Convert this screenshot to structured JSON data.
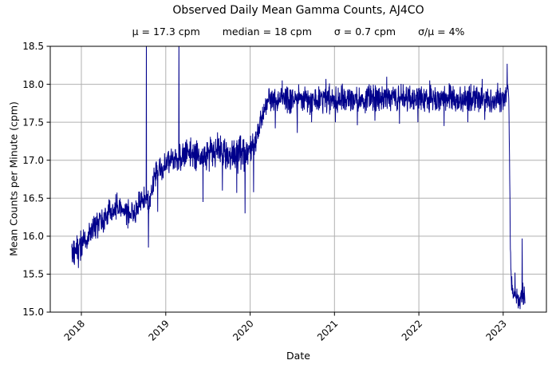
{
  "chart_data": {
    "type": "line",
    "title": "Observed Daily Mean Gamma Counts, AJ4CO",
    "stats": {
      "mu": "μ = 17.3 cpm",
      "median": "median = 18 cpm",
      "sigma": "σ = 0.7 cpm",
      "ratio": "σ/μ = 4%"
    },
    "xlabel": "Date",
    "ylabel": "Mean Counts per Minute (cpm)",
    "xlim": [
      2017.631,
      2023.512
    ],
    "ylim": [
      15.0,
      18.5
    ],
    "xticks": [
      {
        "value": 2018,
        "label": "2018"
      },
      {
        "value": 2019,
        "label": "2019"
      },
      {
        "value": 2020,
        "label": "2020"
      },
      {
        "value": 2021,
        "label": "2021"
      },
      {
        "value": 2022,
        "label": "2022"
      },
      {
        "value": 2023,
        "label": "2023"
      }
    ],
    "yticks": [
      {
        "value": 15.0,
        "label": "15.0"
      },
      {
        "value": 15.5,
        "label": "15.5"
      },
      {
        "value": 16.0,
        "label": "16.0"
      },
      {
        "value": 16.5,
        "label": "16.5"
      },
      {
        "value": 17.0,
        "label": "17.0"
      },
      {
        "value": 17.5,
        "label": "17.5"
      },
      {
        "value": 18.0,
        "label": "18.0"
      },
      {
        "value": 18.5,
        "label": "18.5"
      }
    ],
    "grid": true,
    "legend": false,
    "line_color": "#00008b",
    "grid_color": "#b0b0b0",
    "axis_color": "#000000",
    "series_name": "daily mean gamma counts",
    "cadence": "daily",
    "data_start": 2017.885,
    "data_end": 2023.26,
    "noise_seed": 20230426,
    "trend": [
      [
        2017.885,
        15.8
      ],
      [
        2017.93,
        15.84
      ],
      [
        2018.0,
        15.9
      ],
      [
        2018.1,
        16.03
      ],
      [
        2018.2,
        16.16
      ],
      [
        2018.3,
        16.28
      ],
      [
        2018.42,
        16.42
      ],
      [
        2018.5,
        16.34
      ],
      [
        2018.58,
        16.27
      ],
      [
        2018.65,
        16.33
      ],
      [
        2018.72,
        16.44
      ],
      [
        2018.78,
        16.47
      ],
      [
        2018.81,
        16.42
      ],
      [
        2018.86,
        16.78
      ],
      [
        2018.95,
        16.9
      ],
      [
        2019.05,
        16.98
      ],
      [
        2019.15,
        17.02
      ],
      [
        2019.25,
        17.1
      ],
      [
        2019.35,
        17.08
      ],
      [
        2019.45,
        17.02
      ],
      [
        2019.55,
        17.08
      ],
      [
        2019.65,
        17.14
      ],
      [
        2019.75,
        17.08
      ],
      [
        2019.85,
        17.06
      ],
      [
        2019.93,
        17.1
      ],
      [
        2020.0,
        17.18
      ],
      [
        2020.07,
        17.28
      ],
      [
        2020.13,
        17.55
      ],
      [
        2020.2,
        17.75
      ],
      [
        2020.3,
        17.78
      ],
      [
        2020.5,
        17.8
      ],
      [
        2020.75,
        17.8
      ],
      [
        2021.0,
        17.8
      ],
      [
        2021.25,
        17.8
      ],
      [
        2021.5,
        17.82
      ],
      [
        2021.75,
        17.8
      ],
      [
        2022.0,
        17.8
      ],
      [
        2022.25,
        17.8
      ],
      [
        2022.5,
        17.82
      ],
      [
        2022.75,
        17.8
      ],
      [
        2023.0,
        17.8
      ],
      [
        2023.03,
        17.88
      ],
      [
        2023.05,
        17.95
      ],
      [
        2023.065,
        17.9
      ],
      [
        2023.075,
        17.0
      ],
      [
        2023.085,
        15.8
      ],
      [
        2023.095,
        15.4
      ],
      [
        2023.11,
        15.25
      ],
      [
        2023.15,
        15.18
      ],
      [
        2023.19,
        15.16
      ],
      [
        2023.22,
        15.2
      ],
      [
        2023.245,
        15.25
      ],
      [
        2023.26,
        15.2
      ]
    ],
    "noise_amplitude": [
      [
        2017.885,
        0.24
      ],
      [
        2018.2,
        0.22
      ],
      [
        2018.6,
        0.22
      ],
      [
        2018.85,
        0.2
      ],
      [
        2019.0,
        0.2
      ],
      [
        2019.4,
        0.26
      ],
      [
        2019.8,
        0.28
      ],
      [
        2019.97,
        0.28
      ],
      [
        2020.1,
        0.18
      ],
      [
        2020.25,
        0.22
      ],
      [
        2021.0,
        0.22
      ],
      [
        2022.0,
        0.22
      ],
      [
        2023.0,
        0.22
      ],
      [
        2023.05,
        0.1
      ],
      [
        2023.07,
        0.06
      ],
      [
        2023.1,
        0.16
      ],
      [
        2023.15,
        0.18
      ],
      [
        2023.26,
        0.18
      ]
    ],
    "upward_spikes": [
      [
        2018.77,
        18.7
      ],
      [
        2019.155,
        18.7
      ],
      [
        2020.38,
        18.05
      ],
      [
        2020.9,
        18.07
      ],
      [
        2021.62,
        18.1
      ],
      [
        2022.13,
        18.05
      ],
      [
        2022.75,
        18.07
      ],
      [
        2023.048,
        18.27
      ],
      [
        2023.14,
        15.52
      ],
      [
        2023.225,
        15.97
      ]
    ],
    "downward_spikes": [
      [
        2017.965,
        15.58
      ],
      [
        2018.55,
        16.1
      ],
      [
        2018.795,
        15.85
      ],
      [
        2018.905,
        16.32
      ],
      [
        2019.44,
        16.45
      ],
      [
        2019.67,
        16.6
      ],
      [
        2019.84,
        16.57
      ],
      [
        2019.94,
        16.3
      ],
      [
        2020.04,
        16.58
      ],
      [
        2020.3,
        17.42
      ],
      [
        2020.56,
        17.36
      ],
      [
        2020.73,
        17.5
      ],
      [
        2021.01,
        17.5
      ],
      [
        2021.27,
        17.46
      ],
      [
        2021.48,
        17.52
      ],
      [
        2021.77,
        17.48
      ],
      [
        2021.99,
        17.5
      ],
      [
        2022.3,
        17.45
      ],
      [
        2022.58,
        17.5
      ],
      [
        2022.78,
        17.53
      ]
    ]
  }
}
